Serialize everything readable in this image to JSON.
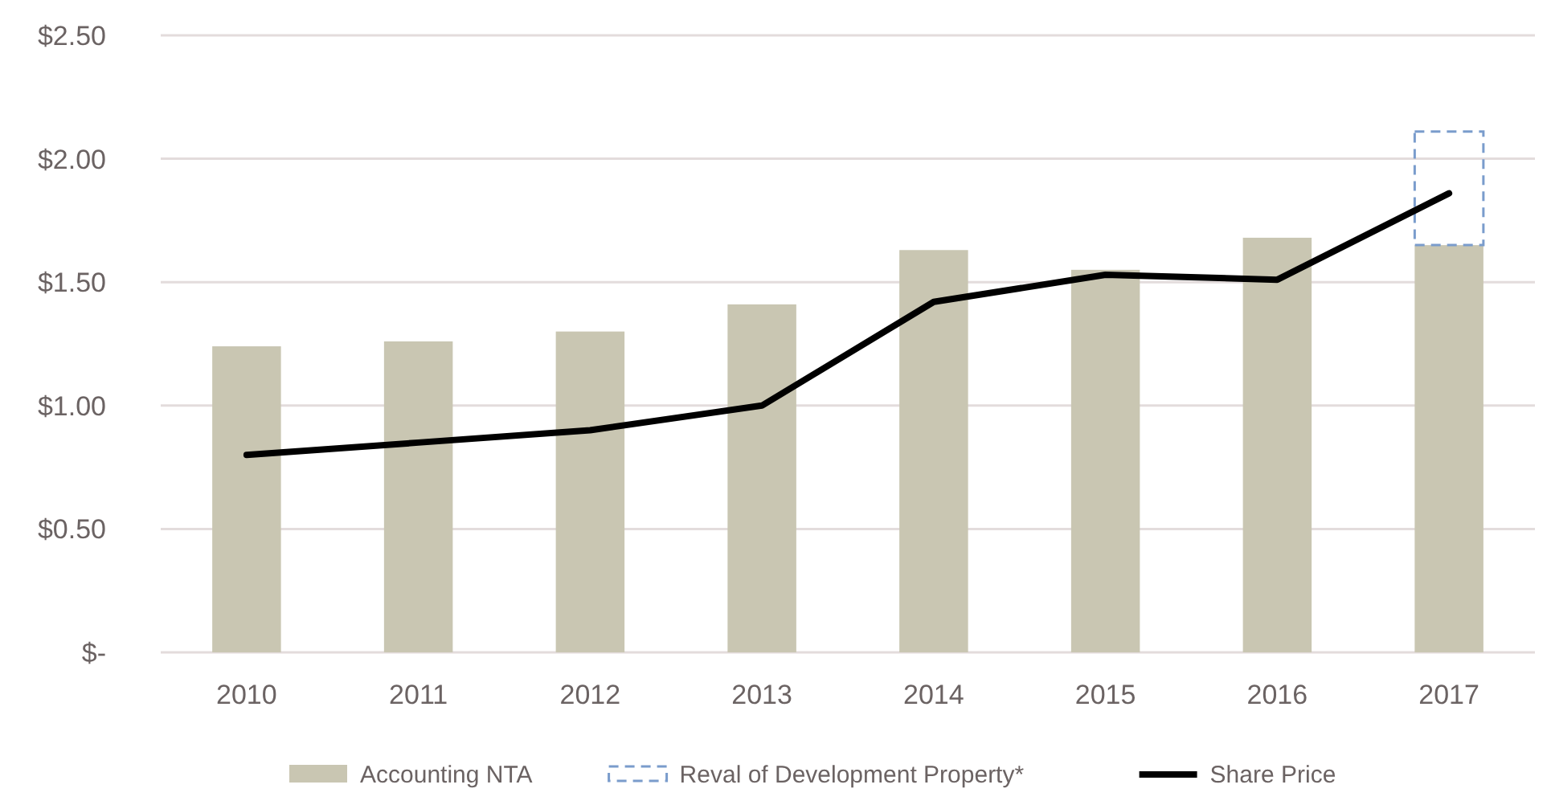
{
  "chart_data": {
    "type": "bar",
    "categories": [
      "2010",
      "2011",
      "2012",
      "2013",
      "2014",
      "2015",
      "2016",
      "2017"
    ],
    "stacked": true,
    "ylim": [
      0,
      2.5
    ],
    "yticks": [
      {
        "value": 0,
        "label": "$-"
      },
      {
        "value": 0.5,
        "label": "$0.50"
      },
      {
        "value": 1,
        "label": "$1.00"
      },
      {
        "value": 1.5,
        "label": "$1.50"
      },
      {
        "value": 2,
        "label": "$2.00"
      },
      {
        "value": 2.5,
        "label": "$2.50"
      }
    ],
    "grid": "y",
    "legend": "bottom",
    "series": [
      {
        "name": "Accounting NTA",
        "color": "#c9c6b2",
        "values": [
          1.24,
          1.26,
          1.3,
          1.41,
          1.63,
          1.55,
          1.68,
          1.65
        ]
      },
      {
        "name": "Reval of Development Property*",
        "color": "#7a9ccc",
        "line_style": "dashed",
        "values": [
          null,
          null,
          null,
          null,
          null,
          null,
          null,
          0.46
        ]
      },
      {
        "name": "Share Price",
        "type": "line",
        "color": "#000000",
        "line_style": "solid",
        "values": [
          0.8,
          0.85,
          0.9,
          1.0,
          1.42,
          1.53,
          1.51,
          1.86
        ]
      }
    ]
  }
}
